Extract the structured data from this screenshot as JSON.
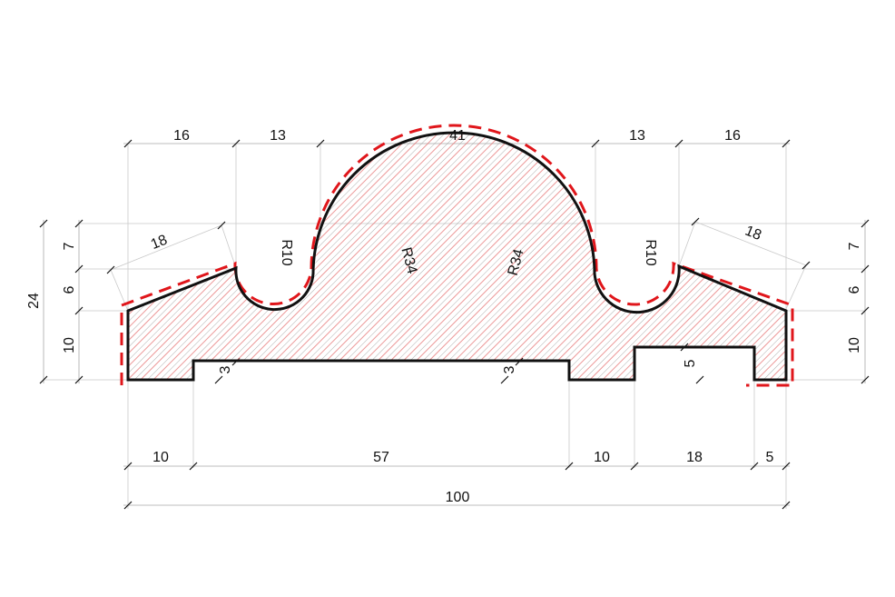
{
  "colors": {
    "outline": "#111111",
    "offset_dash": "#e0161b",
    "hatch_black": "#7a7a7a",
    "hatch_red": "#e46a6a",
    "background": "#ffffff"
  },
  "dimensions": {
    "top": [
      "16",
      "13",
      "41",
      "13",
      "16"
    ],
    "bottom": [
      "10",
      "57",
      "10",
      "18",
      "5"
    ],
    "overall": "100",
    "left_side": [
      "7",
      "6",
      "10"
    ],
    "left_total": "24",
    "right_side": [
      "7",
      "6",
      "10"
    ],
    "slope_left": "18",
    "slope_right": "18",
    "radii": [
      "R10",
      "R34",
      "R34",
      "R10"
    ],
    "groove_left": "3",
    "groove_middle": "3",
    "groove_right": "5"
  }
}
